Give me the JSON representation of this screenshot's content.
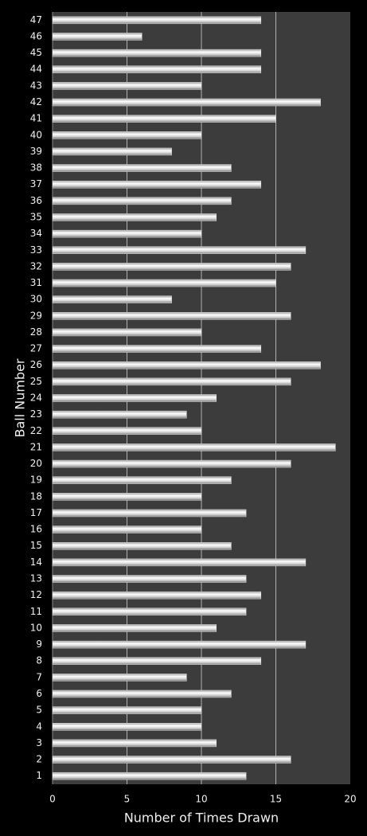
{
  "chart_data": {
    "type": "bar",
    "orientation": "horizontal",
    "x_label": "Number of Times Drawn",
    "y_label": "Ball Number",
    "categories": [
      "1",
      "2",
      "3",
      "4",
      "5",
      "6",
      "7",
      "8",
      "9",
      "10",
      "11",
      "12",
      "13",
      "14",
      "15",
      "16",
      "17",
      "18",
      "19",
      "20",
      "21",
      "22",
      "23",
      "24",
      "25",
      "26",
      "27",
      "28",
      "29",
      "30",
      "31",
      "32",
      "33",
      "34",
      "35",
      "36",
      "37",
      "38",
      "39",
      "40",
      "41",
      "42",
      "43",
      "44",
      "45",
      "46",
      "47"
    ],
    "values": [
      13,
      16,
      11,
      10,
      10,
      12,
      9,
      14,
      17,
      11,
      13,
      14,
      13,
      17,
      12,
      10,
      13,
      10,
      12,
      16,
      19,
      10,
      9,
      11,
      16,
      18,
      14,
      10,
      16,
      8,
      15,
      16,
      17,
      10,
      11,
      12,
      14,
      12,
      8,
      10,
      15,
      18,
      10,
      14,
      14,
      6,
      14
    ],
    "color": "#e8e8e8",
    "xlim": [
      0,
      20
    ],
    "xticks": [
      0,
      5,
      10,
      15,
      20
    ],
    "grid": true
  }
}
